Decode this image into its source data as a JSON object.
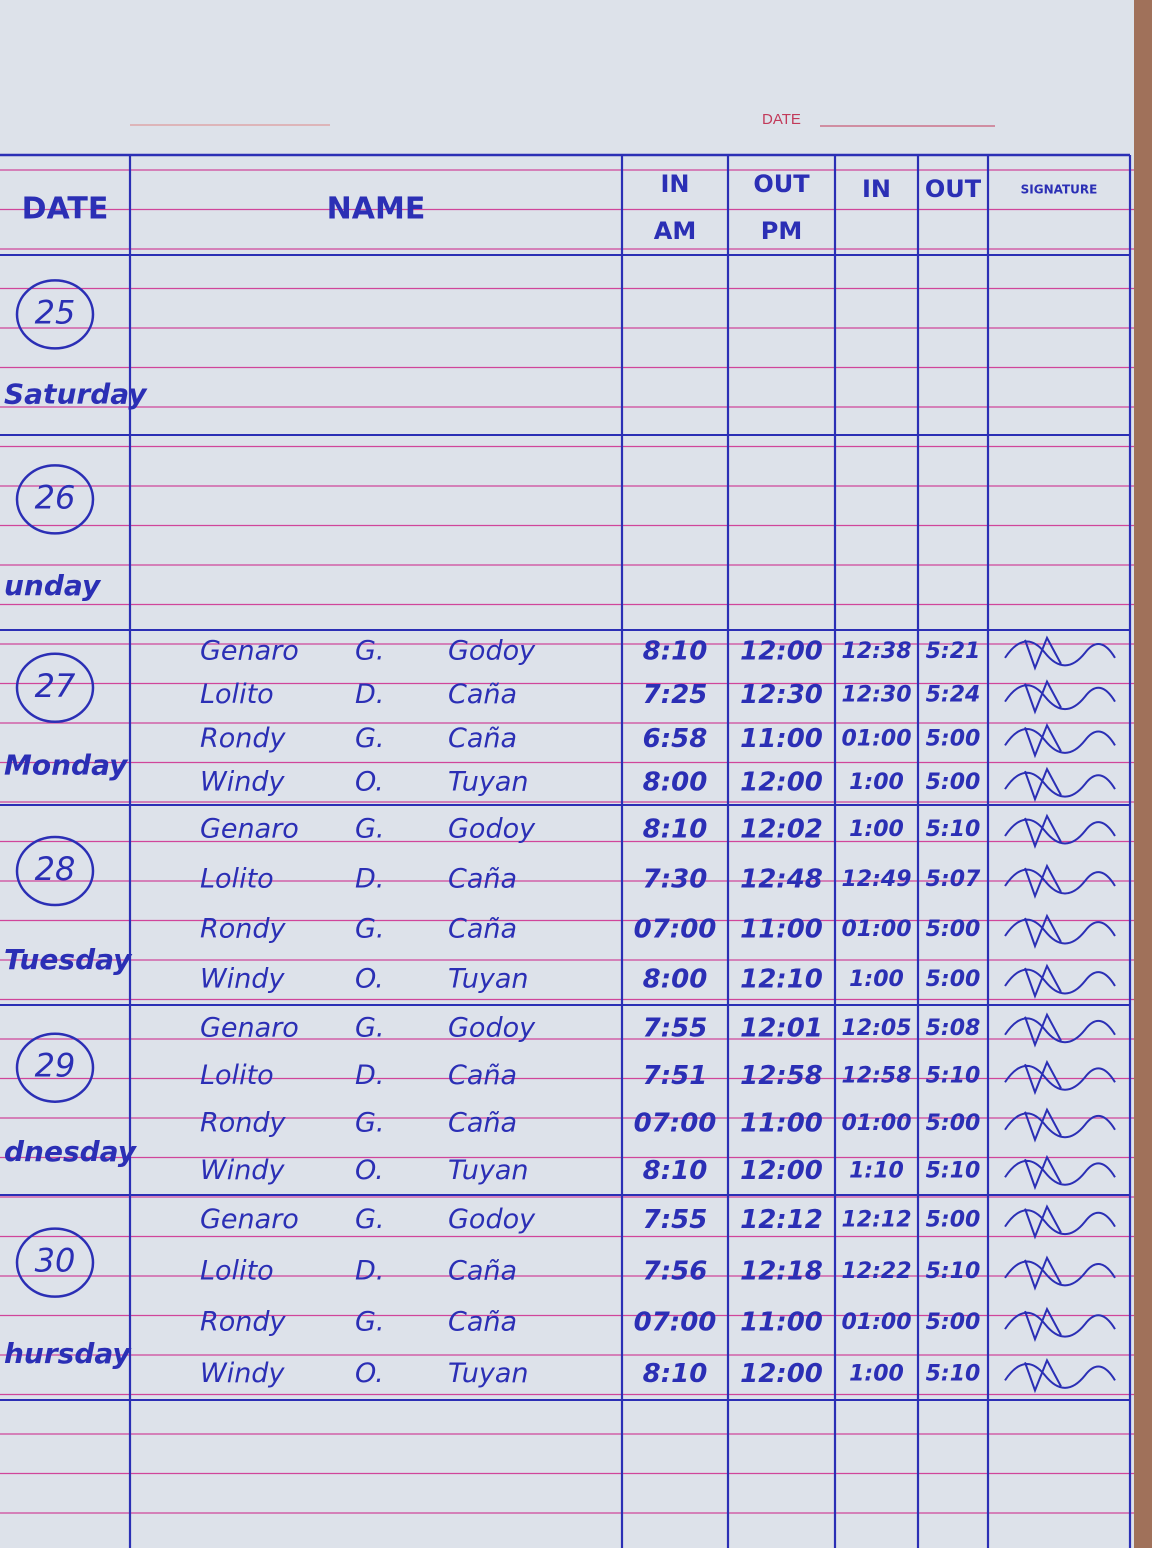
{
  "header": {
    "date_label": "DATE"
  },
  "table": {
    "columns": [
      {
        "top": "DATE"
      },
      {
        "top": "NAME"
      },
      {
        "top": "IN",
        "bottom": "AM"
      },
      {
        "top": "OUT",
        "bottom": "PM"
      },
      {
        "top": "IN"
      },
      {
        "top": "OUT"
      },
      {
        "top": "SIGNATURE"
      }
    ],
    "days": [
      {
        "date": "25",
        "day": "Saturday",
        "entries": []
      },
      {
        "date": "26",
        "day": "unday",
        "entries": []
      },
      {
        "date": "27",
        "day": "Monday",
        "entries": [
          {
            "first": "Genaro",
            "middle": "G.",
            "last": "Godoy",
            "in_am": "8:10",
            "out_pm": "12:00",
            "in": "12:38",
            "out": "5:21"
          },
          {
            "first": "Lolito",
            "middle": "D.",
            "last": "Caña",
            "in_am": "7:25",
            "out_pm": "12:30",
            "in": "12:30",
            "out": "5:24"
          },
          {
            "first": "Rondy",
            "middle": "G.",
            "last": "Caña",
            "in_am": "6:58",
            "out_pm": "11:00",
            "in": "01:00",
            "out": "5:00"
          },
          {
            "first": "Windy",
            "middle": "O.",
            "last": "Tuyan",
            "in_am": "8:00",
            "out_pm": "12:00",
            "in": "1:00",
            "out": "5:00"
          }
        ]
      },
      {
        "date": "28",
        "day": "Tuesday",
        "entries": [
          {
            "first": "Genaro",
            "middle": "G.",
            "last": "Godoy",
            "in_am": "8:10",
            "out_pm": "12:02",
            "in": "1:00",
            "out": "5:10"
          },
          {
            "first": "Lolito",
            "middle": "D.",
            "last": "Caña",
            "in_am": "7:30",
            "out_pm": "12:48",
            "in": "12:49",
            "out": "5:07"
          },
          {
            "first": "Rondy",
            "middle": "G.",
            "last": "Caña",
            "in_am": "07:00",
            "out_pm": "11:00",
            "in": "01:00",
            "out": "5:00"
          },
          {
            "first": "Windy",
            "middle": "O.",
            "last": "Tuyan",
            "in_am": "8:00",
            "out_pm": "12:10",
            "in": "1:00",
            "out": "5:00"
          }
        ]
      },
      {
        "date": "29",
        "day": "dnesday",
        "entries": [
          {
            "first": "Genaro",
            "middle": "G.",
            "last": "Godoy",
            "in_am": "7:55",
            "out_pm": "12:01",
            "in": "12:05",
            "out": "5:08"
          },
          {
            "first": "Lolito",
            "middle": "D.",
            "last": "Caña",
            "in_am": "7:51",
            "out_pm": "12:58",
            "in": "12:58",
            "out": "5:10"
          },
          {
            "first": "Rondy",
            "middle": "G.",
            "last": "Caña",
            "in_am": "07:00",
            "out_pm": "11:00",
            "in": "01:00",
            "out": "5:00"
          },
          {
            "first": "Windy",
            "middle": "O.",
            "last": "Tuyan",
            "in_am": "8:10",
            "out_pm": "12:00",
            "in": "1:10",
            "out": "5:10"
          }
        ]
      },
      {
        "date": "30",
        "day": "hursday",
        "entries": [
          {
            "first": "Genaro",
            "middle": "G.",
            "last": "Godoy",
            "in_am": "7:55",
            "out_pm": "12:12",
            "in": "12:12",
            "out": "5:00"
          },
          {
            "first": "Lolito",
            "middle": "D.",
            "last": "Caña",
            "in_am": "7:56",
            "out_pm": "12:18",
            "in": "12:22",
            "out": "5:10"
          },
          {
            "first": "Rondy",
            "middle": "G.",
            "last": "Caña",
            "in_am": "07:00",
            "out_pm": "11:00",
            "in": "01:00",
            "out": "5:00"
          },
          {
            "first": "Windy",
            "middle": "O.",
            "last": "Tuyan",
            "in_am": "8:10",
            "out_pm": "12:00",
            "in": "1:00",
            "out": "5:10"
          }
        ]
      }
    ]
  }
}
